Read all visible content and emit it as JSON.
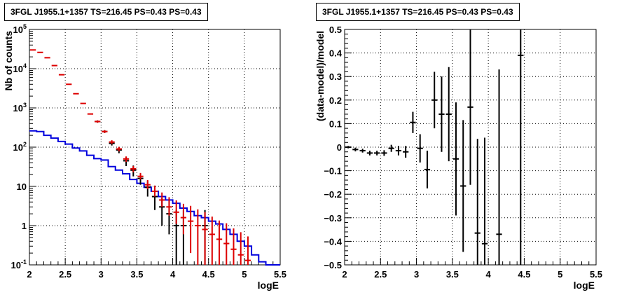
{
  "chart_data": [
    {
      "type": "line",
      "title": "3FGL J1955.1+1357 TS=216.45 PS=0.43 PS=0.43",
      "xlabel": "logE",
      "ylabel": "Nb of counts",
      "xlim": [
        2,
        5.5
      ],
      "ylim": [
        0.1,
        100000
      ],
      "yscale": "log",
      "grid": true,
      "x_ticks": [
        "2",
        "2.5",
        "3",
        "3.5",
        "4",
        "4.5",
        "5",
        "5.5"
      ],
      "y_ticks": [
        "10^{-1}",
        "1",
        "10",
        "10^{2}",
        "10^{3}",
        "10^{4}",
        "10^{5}"
      ],
      "bin_width": 0.1,
      "series": [
        {
          "color": "#0000dd",
          "style": "step",
          "x": [
            2.0,
            2.1,
            2.2,
            2.3,
            2.4,
            2.5,
            2.6,
            2.7,
            2.8,
            2.9,
            3.0,
            3.1,
            3.2,
            3.3,
            3.4,
            3.5,
            3.6,
            3.7,
            3.8,
            3.9,
            4.0,
            4.1,
            4.2,
            4.3,
            4.4,
            4.5,
            4.6,
            4.7,
            4.8,
            4.9,
            5.0,
            5.1,
            5.2,
            5.3,
            5.4
          ],
          "y": [
            260,
            250,
            200,
            170,
            140,
            120,
            95,
            80,
            62,
            51,
            47,
            32,
            26,
            21,
            15,
            12,
            9.5,
            7.5,
            5.5,
            4.5,
            3.7,
            2.8,
            2.3,
            1.8,
            1.6,
            1.3,
            1.1,
            0.8,
            0.6,
            0.4,
            0.3,
            0.18,
            0.12,
            0.1,
            0.1
          ]
        },
        {
          "color": "#000000",
          "style": "errorbar",
          "x": [
            2.95,
            3.05,
            3.15,
            3.25,
            3.35,
            3.45,
            3.55,
            3.65,
            3.75,
            3.85,
            3.95,
            4.05,
            4.15,
            4.45
          ],
          "y": [
            450,
            250,
            125,
            85,
            45,
            26,
            16,
            9.5,
            5.5,
            3,
            2,
            1,
            1,
            1
          ],
          "yerr_low": [
            30,
            20,
            15,
            15,
            12,
            8,
            5,
            4,
            3,
            2,
            1.4,
            0.9,
            0.9,
            0.9
          ],
          "yerr_high": [
            30,
            20,
            15,
            15,
            12,
            8,
            5,
            4,
            3,
            2,
            2.5,
            1.5,
            1.5,
            1.5
          ]
        },
        {
          "color": "#dd0000",
          "style": "errorbar",
          "x": [
            2.05,
            2.15,
            2.25,
            2.35,
            2.45,
            2.55,
            2.65,
            2.75,
            2.85,
            2.95,
            3.05,
            3.15,
            3.25,
            3.35,
            3.45,
            3.55,
            3.65,
            3.75,
            3.85,
            3.95,
            4.05,
            4.15,
            4.25,
            4.35,
            4.45,
            4.55,
            4.65,
            4.75,
            4.85,
            4.95,
            5.05
          ],
          "y": [
            30000,
            26000,
            19000,
            12000,
            7000,
            4000,
            2300,
            1300,
            700,
            450,
            250,
            135,
            90,
            50,
            28,
            18,
            11,
            7.5,
            4.5,
            3,
            2.2,
            1.6,
            1.3,
            1.0,
            0.8,
            0.6,
            0.45,
            0.35,
            0.25,
            0.18,
            0.13
          ],
          "yerr_low": [
            0,
            0,
            0,
            0,
            0,
            0,
            0,
            0,
            0,
            30,
            20,
            15,
            12,
            8,
            5,
            3,
            2.5,
            2,
            1.5,
            1.2,
            1.1,
            1.0,
            1.1,
            0.9,
            0.7,
            0.5,
            0.4,
            0.3,
            0.2,
            0.15,
            0.1
          ],
          "yerr_high": [
            0,
            0,
            0,
            0,
            0,
            0,
            0,
            0,
            0,
            30,
            20,
            15,
            12,
            8,
            5,
            4,
            3.5,
            3,
            2.5,
            2.3,
            2.2,
            2.0,
            1.9,
            1.6,
            1.4,
            1.1,
            0.9,
            0.8,
            0.6,
            0.5,
            0.4
          ]
        }
      ]
    },
    {
      "type": "scatter",
      "title": "3FGL J1955.1+1357 TS=216.45 PS=0.43 PS=0.43",
      "xlabel": "logE",
      "ylabel": "(data-model)/model",
      "xlim": [
        2,
        5.5
      ],
      "ylim": [
        -0.5,
        0.5
      ],
      "grid": true,
      "x_ticks": [
        "2",
        "2.5",
        "3",
        "3.5",
        "4",
        "4.5",
        "5",
        "5.5"
      ],
      "y_ticks": [
        "−0.5",
        "−0.4",
        "−0.3",
        "−0.2",
        "−0.1",
        "0",
        "0.1",
        "0.2",
        "0.3",
        "0.4",
        "0.5"
      ],
      "bin_width": 0.1,
      "series": [
        {
          "color": "#000000",
          "style": "errorbar",
          "x": [
            2.05,
            2.15,
            2.25,
            2.35,
            2.45,
            2.55,
            2.65,
            2.75,
            2.85,
            2.95,
            3.05,
            3.15,
            3.25,
            3.35,
            3.45,
            3.55,
            3.65,
            3.75,
            3.85,
            3.95,
            4.15,
            4.45
          ],
          "y": [
            0.0,
            -0.01,
            -0.015,
            -0.025,
            -0.025,
            -0.025,
            -0.005,
            -0.015,
            -0.02,
            0.105,
            -0.005,
            -0.095,
            0.2,
            0.14,
            0.14,
            -0.05,
            -0.165,
            0.17,
            -0.365,
            -0.41,
            -0.37,
            0.39
          ],
          "yerr": [
            0.005,
            0.008,
            0.008,
            0.01,
            0.01,
            0.012,
            0.015,
            0.02,
            0.025,
            0.045,
            0.06,
            0.08,
            0.12,
            0.16,
            0.2,
            0.24,
            0.28,
            0.33,
            0.4,
            0.45,
            0.7,
            0.9
          ]
        }
      ]
    }
  ]
}
